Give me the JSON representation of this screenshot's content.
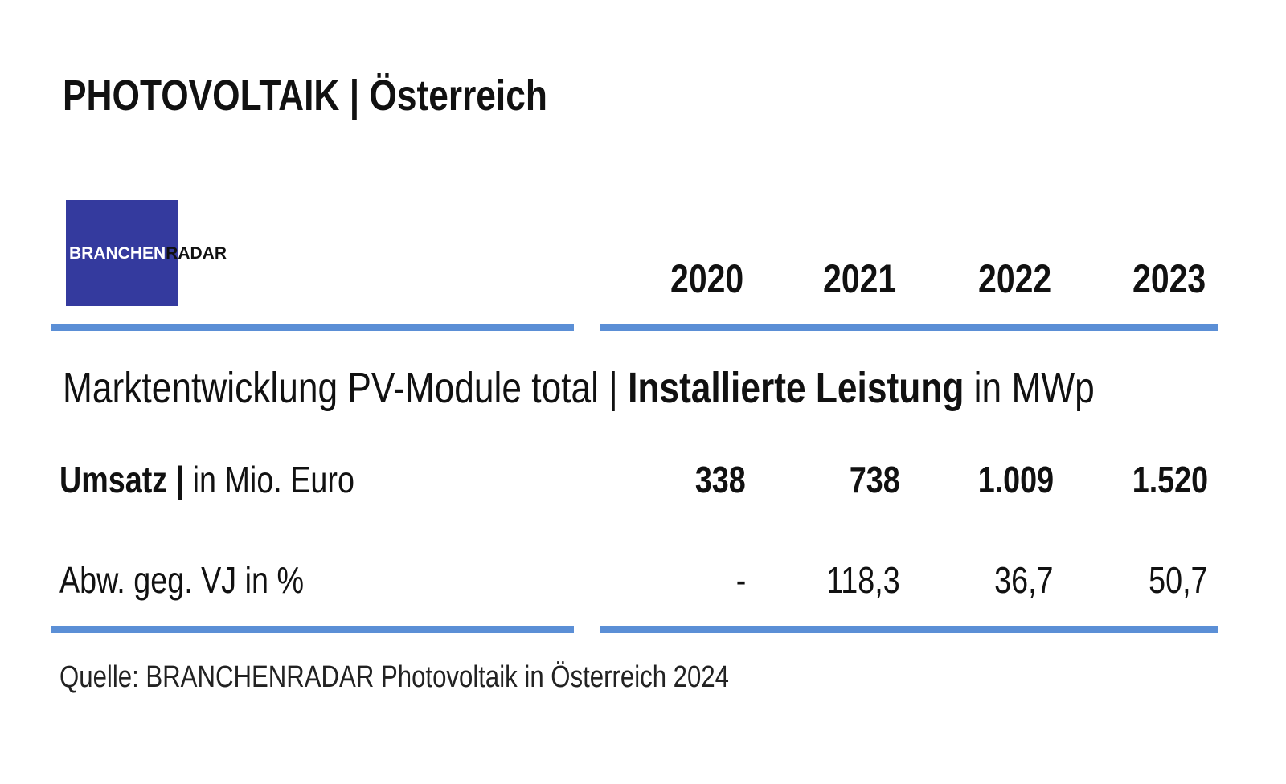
{
  "title": "PHOTOVOLTAIK | Österreich",
  "logo": {
    "part1": "BRANCHEN",
    "part2": "RADAR",
    "color": "#343a9e"
  },
  "accent_line_color": "#5b8fd6",
  "chart_data": {
    "type": "table",
    "title": "PHOTOVOLTAIK | Österreich",
    "subtitle": {
      "regular": "Marktentwicklung PV-Module total | ",
      "bold": "Installierte Leistung",
      "suffix": " in MWp"
    },
    "columns": [
      "2020",
      "2021",
      "2022",
      "2023"
    ],
    "rows": [
      {
        "label_bold": "Umsatz |",
        "label": " in Mio. Euro",
        "values": [
          "338",
          "738",
          "1.009",
          "1.520"
        ]
      },
      {
        "label_bold": "",
        "label": "Abw. geg. VJ in %",
        "values": [
          "-",
          "118,3",
          "36,7",
          "50,7"
        ]
      }
    ],
    "source": "Quelle: BRANCHENRADAR Photovoltaik in Österreich 2024"
  }
}
